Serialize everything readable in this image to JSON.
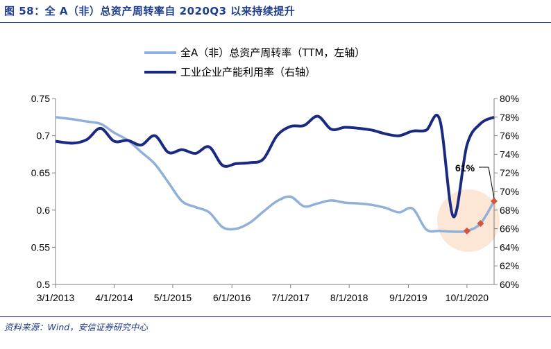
{
  "figure": {
    "title": "图 58：全 A（非）总资产周转率自 2020Q3 以来持续提升",
    "source": "资料来源：Wind，安信证券研究中心"
  },
  "colors": {
    "left_series": "#8fb0d9",
    "right_series": "#1a2a80",
    "title_blue": "#1f3d8f",
    "highlight_circle": "#fbe2cf",
    "marker": "#d9533a"
  },
  "chart_data": {
    "type": "line",
    "x_tick_labels": [
      "3/1/2013",
      "4/1/2014",
      "5/1/2015",
      "6/1/2016",
      "7/1/2017",
      "8/1/2018",
      "9/1/2019",
      "10/1/2020"
    ],
    "left_axis": {
      "ylim": [
        0.5,
        0.75
      ],
      "ticks": [
        "0.5",
        "0.55",
        "0.6",
        "0.65",
        "0.7",
        "0.75"
      ]
    },
    "right_axis": {
      "ylim": [
        60,
        80
      ],
      "ticks": [
        "60%",
        "62%",
        "64%",
        "66%",
        "68%",
        "70%",
        "72%",
        "74%",
        "76%",
        "78%",
        "80%"
      ]
    },
    "grid": false,
    "legend_position": "top-center",
    "series": [
      {
        "name": "全A（非）总资产周转率（TTM，左轴）",
        "axis": "left",
        "x": [
          2013.17,
          2013.5,
          2013.75,
          2014.0,
          2014.25,
          2014.5,
          2014.75,
          2015.0,
          2015.25,
          2015.5,
          2015.75,
          2016.0,
          2016.25,
          2016.5,
          2016.75,
          2017.0,
          2017.25,
          2017.5,
          2017.75,
          2018.0,
          2018.25,
          2018.5,
          2018.75,
          2019.0,
          2019.25,
          2019.5,
          2019.75,
          2020.0,
          2020.25,
          2020.5,
          2020.75,
          2021.0,
          2021.25
        ],
        "y": [
          0.725,
          0.722,
          0.719,
          0.716,
          0.704,
          0.694,
          0.678,
          0.662,
          0.637,
          0.612,
          0.604,
          0.597,
          0.577,
          0.575,
          0.583,
          0.598,
          0.612,
          0.618,
          0.605,
          0.609,
          0.613,
          0.61,
          0.609,
          0.607,
          0.603,
          0.597,
          0.602,
          0.574,
          0.572,
          0.571,
          0.572,
          0.582,
          0.612
        ]
      },
      {
        "name": "工业企业产能利用率（右轴）",
        "axis": "right",
        "x": [
          2013.17,
          2013.5,
          2013.75,
          2014.0,
          2014.25,
          2014.5,
          2014.75,
          2015.0,
          2015.25,
          2015.5,
          2015.75,
          2016.0,
          2016.25,
          2016.5,
          2016.75,
          2017.0,
          2017.25,
          2017.5,
          2017.75,
          2018.0,
          2018.25,
          2018.5,
          2018.75,
          2019.0,
          2019.25,
          2019.5,
          2019.75,
          2020.0,
          2020.25,
          2020.5,
          2020.75,
          2021.0,
          2021.25
        ],
        "y": [
          75.4,
          75.2,
          75.6,
          76.8,
          75.4,
          75.5,
          75.0,
          76.0,
          74.2,
          74.5,
          74.1,
          74.8,
          72.8,
          73.0,
          73.1,
          73.5,
          76.0,
          77.0,
          77.1,
          78.1,
          76.7,
          76.9,
          76.8,
          76.6,
          76.2,
          76.0,
          76.5,
          76.6,
          77.7,
          67.3,
          75.0,
          77.3,
          78.0
        ]
      }
    ],
    "annotations": [
      {
        "text": "61%"
      }
    ],
    "highlighted_points": [
      {
        "x": 2020.75,
        "y": 0.572
      },
      {
        "x": 2021.0,
        "y": 0.582
      },
      {
        "x": 2021.25,
        "y": 0.612
      }
    ]
  }
}
